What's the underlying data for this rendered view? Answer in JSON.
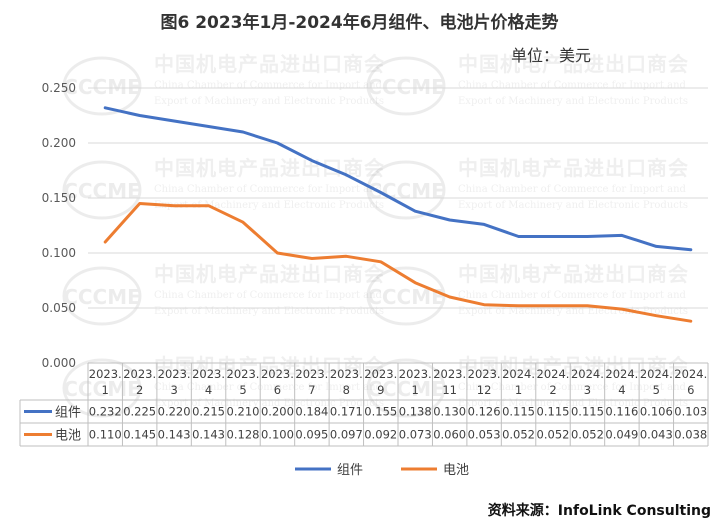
{
  "title": "图6   2023年1月-2024年6月组件、电池片价格走势",
  "unit": "单位：美元",
  "source": "资料来源：InfoLink Consulting",
  "watermark": {
    "logo": "CCCME",
    "cn": "中国机电产品进出口商会",
    "en1": "China Chamber of Commerce for Import and",
    "en2": "Export of Machinery and Electronic Products"
  },
  "chart_data": {
    "type": "line",
    "categories": [
      [
        "2023.",
        "1"
      ],
      [
        "2023.",
        "2"
      ],
      [
        "2023.",
        "3"
      ],
      [
        "2023.",
        "4"
      ],
      [
        "2023.",
        "5"
      ],
      [
        "2023.",
        "6"
      ],
      [
        "2023.",
        "7"
      ],
      [
        "2023.",
        "8"
      ],
      [
        "2023.",
        "9"
      ],
      [
        "2023.",
        "1"
      ],
      [
        "2023.",
        "11"
      ],
      [
        "2023.",
        "12"
      ],
      [
        "2024.",
        "1"
      ],
      [
        "2024.",
        "2"
      ],
      [
        "2024.",
        "3"
      ],
      [
        "2024.",
        "4"
      ],
      [
        "2024.",
        "5"
      ],
      [
        "2024.",
        "6"
      ]
    ],
    "series": [
      {
        "name": "组件",
        "color": "#4472C4",
        "values": [
          0.232,
          0.225,
          0.22,
          0.215,
          0.21,
          0.2,
          0.184,
          0.171,
          0.155,
          0.138,
          0.13,
          0.126,
          0.115,
          0.115,
          0.115,
          0.116,
          0.106,
          0.103
        ]
      },
      {
        "name": "电池",
        "color": "#ED7D31",
        "values": [
          0.11,
          0.145,
          0.143,
          0.143,
          0.128,
          0.1,
          0.095,
          0.097,
          0.092,
          0.073,
          0.06,
          0.053,
          0.052,
          0.052,
          0.052,
          0.049,
          0.043,
          0.038
        ]
      }
    ],
    "ylim": [
      0,
      0.25
    ],
    "yticks": [
      "0.000",
      "0.050",
      "0.100",
      "0.150",
      "0.200",
      "0.250"
    ],
    "grid": true,
    "data_table": true,
    "legend_position": "bottom"
  }
}
